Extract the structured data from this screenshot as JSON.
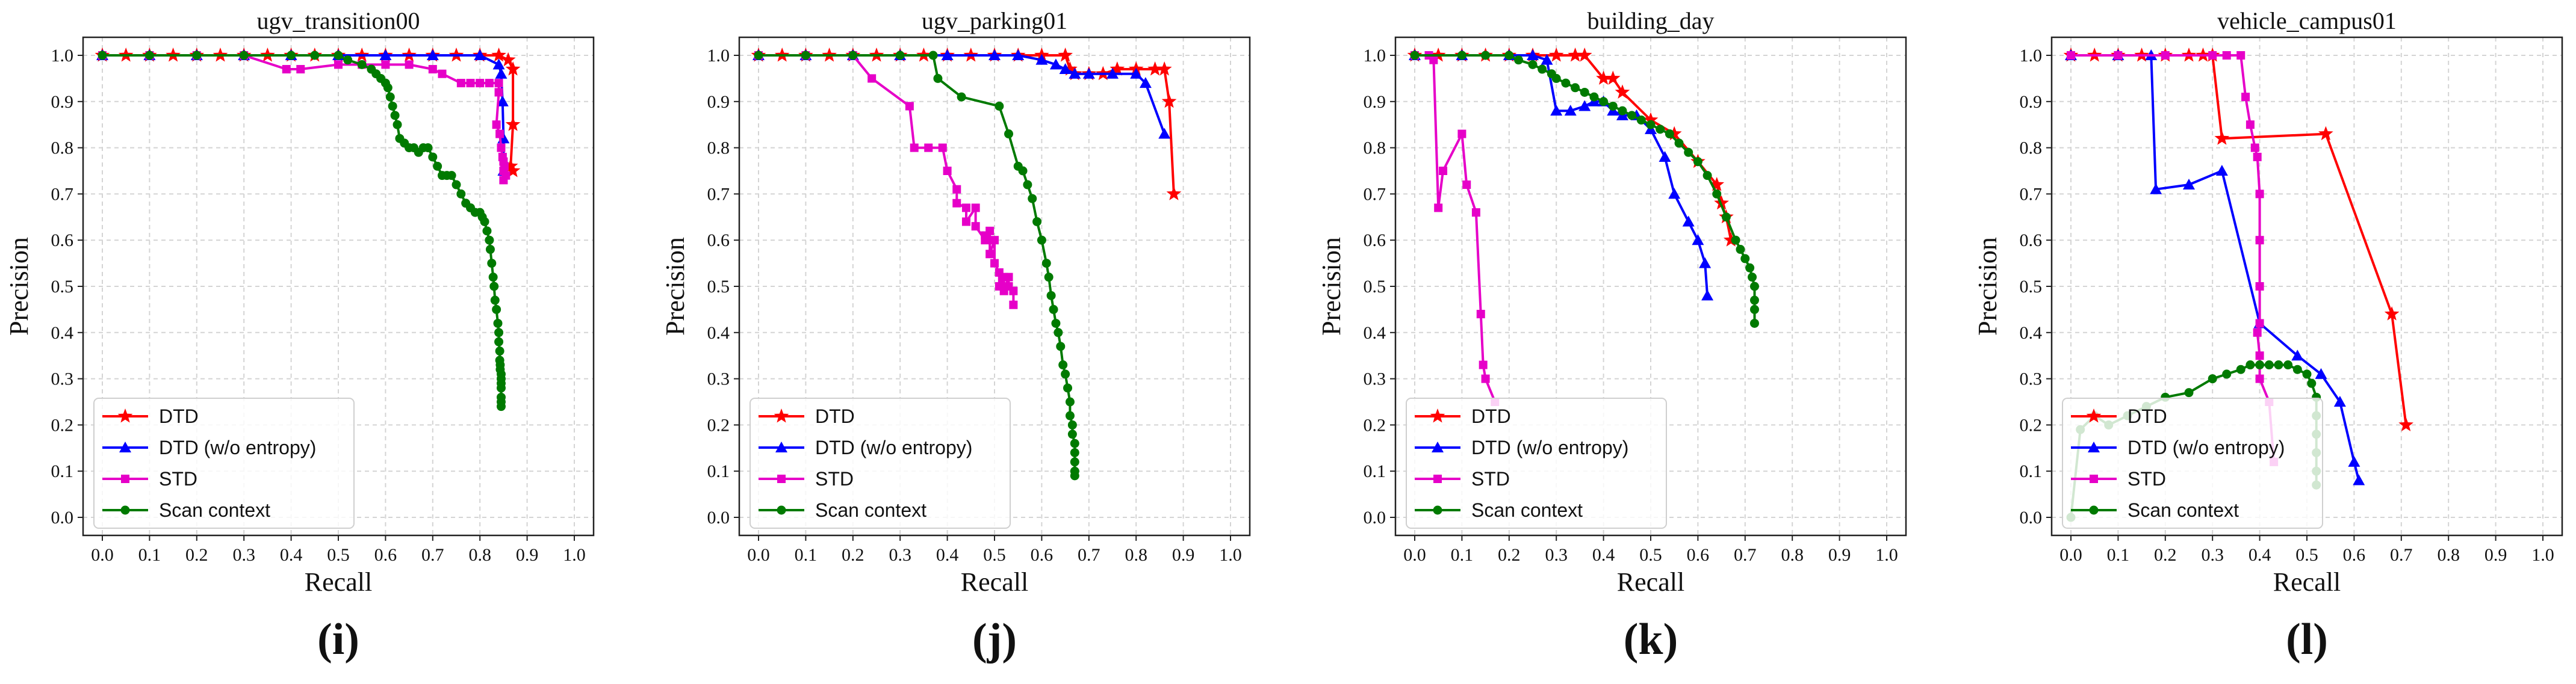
{
  "chart_data": [
    {
      "type": "line",
      "title": "ugv_transition00",
      "panel_label": "(i)",
      "xlabel": "Recall",
      "ylabel": "Precision",
      "xlim": [
        0,
        1
      ],
      "ylim": [
        0,
        1
      ],
      "xticks": [
        "0.0",
        "0.1",
        "0.2",
        "0.3",
        "0.4",
        "0.5",
        "0.6",
        "0.7",
        "0.8",
        "0.9",
        "1.0"
      ],
      "yticks": [
        "0.0",
        "0.1",
        "0.2",
        "0.3",
        "0.4",
        "0.5",
        "0.6",
        "0.7",
        "0.8",
        "0.9",
        "1.0"
      ],
      "grid": true,
      "legend_position": "lower-left",
      "series": [
        {
          "name": "DTD",
          "color": "#ff0000",
          "marker": "star",
          "x": [
            0.0,
            0.05,
            0.1,
            0.15,
            0.2,
            0.25,
            0.3,
            0.35,
            0.4,
            0.45,
            0.5,
            0.55,
            0.6,
            0.65,
            0.7,
            0.75,
            0.8,
            0.84,
            0.86,
            0.87,
            0.87,
            0.865,
            0.87
          ],
          "y": [
            1.0,
            1.0,
            1.0,
            1.0,
            1.0,
            1.0,
            1.0,
            1.0,
            1.0,
            1.0,
            1.0,
            1.0,
            1.0,
            1.0,
            1.0,
            1.0,
            1.0,
            1.0,
            0.99,
            0.97,
            0.85,
            0.76,
            0.75
          ]
        },
        {
          "name": "DTD (w/o entropy)",
          "color": "#0000ff",
          "marker": "triangle",
          "x": [
            0.0,
            0.1,
            0.2,
            0.3,
            0.4,
            0.5,
            0.6,
            0.7,
            0.8,
            0.84,
            0.845,
            0.848,
            0.85,
            0.85
          ],
          "y": [
            1.0,
            1.0,
            1.0,
            1.0,
            1.0,
            1.0,
            1.0,
            1.0,
            1.0,
            0.98,
            0.96,
            0.9,
            0.82,
            0.75
          ]
        },
        {
          "name": "STD",
          "color": "#e600c8",
          "marker": "square",
          "x": [
            0.0,
            0.1,
            0.2,
            0.3,
            0.39,
            0.42,
            0.5,
            0.55,
            0.6,
            0.65,
            0.7,
            0.72,
            0.76,
            0.78,
            0.8,
            0.82,
            0.84,
            0.84,
            0.835,
            0.842,
            0.845,
            0.848,
            0.85,
            0.852,
            0.85,
            0.855,
            0.85
          ],
          "y": [
            1.0,
            1.0,
            1.0,
            1.0,
            0.97,
            0.97,
            0.98,
            0.98,
            0.98,
            0.98,
            0.97,
            0.96,
            0.94,
            0.94,
            0.94,
            0.94,
            0.94,
            0.92,
            0.85,
            0.83,
            0.8,
            0.78,
            0.77,
            0.76,
            0.75,
            0.74,
            0.73
          ]
        },
        {
          "name": "Scan context",
          "color": "#007a00",
          "marker": "circle",
          "x": [
            0.0,
            0.1,
            0.2,
            0.3,
            0.4,
            0.45,
            0.5,
            0.52,
            0.55,
            0.57,
            0.58,
            0.59,
            0.6,
            0.605,
            0.61,
            0.615,
            0.62,
            0.625,
            0.63,
            0.64,
            0.65,
            0.66,
            0.67,
            0.68,
            0.69,
            0.7,
            0.71,
            0.72,
            0.73,
            0.74,
            0.75,
            0.76,
            0.77,
            0.78,
            0.79,
            0.8,
            0.805,
            0.81,
            0.815,
            0.82,
            0.822,
            0.825,
            0.828,
            0.83,
            0.832,
            0.835,
            0.838,
            0.84,
            0.84,
            0.842,
            0.842,
            0.843,
            0.843,
            0.845,
            0.845,
            0.845,
            0.845,
            0.845,
            0.845,
            0.845
          ],
          "y": [
            1.0,
            1.0,
            1.0,
            1.0,
            1.0,
            1.0,
            1.0,
            0.99,
            0.98,
            0.97,
            0.96,
            0.95,
            0.94,
            0.93,
            0.91,
            0.89,
            0.87,
            0.85,
            0.82,
            0.81,
            0.8,
            0.8,
            0.79,
            0.8,
            0.8,
            0.78,
            0.76,
            0.74,
            0.74,
            0.74,
            0.72,
            0.7,
            0.68,
            0.67,
            0.66,
            0.66,
            0.65,
            0.64,
            0.62,
            0.6,
            0.58,
            0.55,
            0.52,
            0.5,
            0.47,
            0.45,
            0.42,
            0.4,
            0.38,
            0.36,
            0.34,
            0.33,
            0.32,
            0.31,
            0.3,
            0.29,
            0.28,
            0.26,
            0.25,
            0.24
          ]
        }
      ]
    },
    {
      "type": "line",
      "title": "ugv_parking01",
      "panel_label": "(j)",
      "xlabel": "Recall",
      "ylabel": "Precision",
      "xlim": [
        0,
        1
      ],
      "ylim": [
        0,
        1
      ],
      "xticks": [
        "0.0",
        "0.1",
        "0.2",
        "0.3",
        "0.4",
        "0.5",
        "0.6",
        "0.7",
        "0.8",
        "0.9",
        "1.0"
      ],
      "yticks": [
        "0.0",
        "0.1",
        "0.2",
        "0.3",
        "0.4",
        "0.5",
        "0.6",
        "0.7",
        "0.8",
        "0.9",
        "1.0"
      ],
      "grid": true,
      "legend_position": "lower-left",
      "series": [
        {
          "name": "DTD",
          "color": "#ff0000",
          "marker": "star",
          "x": [
            0.0,
            0.05,
            0.1,
            0.15,
            0.2,
            0.25,
            0.3,
            0.35,
            0.4,
            0.45,
            0.5,
            0.55,
            0.6,
            0.65,
            0.66,
            0.67,
            0.7,
            0.73,
            0.76,
            0.8,
            0.84,
            0.86,
            0.87,
            0.88
          ],
          "y": [
            1.0,
            1.0,
            1.0,
            1.0,
            1.0,
            1.0,
            1.0,
            1.0,
            1.0,
            1.0,
            1.0,
            1.0,
            1.0,
            1.0,
            0.97,
            0.96,
            0.96,
            0.96,
            0.97,
            0.97,
            0.97,
            0.97,
            0.9,
            0.7
          ]
        },
        {
          "name": "DTD (w/o entropy)",
          "color": "#0000ff",
          "marker": "triangle",
          "x": [
            0.0,
            0.1,
            0.2,
            0.3,
            0.4,
            0.5,
            0.55,
            0.6,
            0.63,
            0.65,
            0.67,
            0.7,
            0.75,
            0.8,
            0.82,
            0.86
          ],
          "y": [
            1.0,
            1.0,
            1.0,
            1.0,
            1.0,
            1.0,
            1.0,
            0.99,
            0.98,
            0.97,
            0.96,
            0.96,
            0.96,
            0.96,
            0.94,
            0.83
          ]
        },
        {
          "name": "STD",
          "color": "#e600c8",
          "marker": "square",
          "x": [
            0.0,
            0.1,
            0.2,
            0.24,
            0.32,
            0.33,
            0.36,
            0.39,
            0.4,
            0.42,
            0.42,
            0.44,
            0.44,
            0.46,
            0.46,
            0.48,
            0.48,
            0.49,
            0.49,
            0.5,
            0.5,
            0.51,
            0.51,
            0.52,
            0.52,
            0.53,
            0.53,
            0.54,
            0.54
          ],
          "y": [
            1.0,
            1.0,
            1.0,
            0.95,
            0.89,
            0.8,
            0.8,
            0.8,
            0.75,
            0.71,
            0.68,
            0.67,
            0.64,
            0.67,
            0.63,
            0.6,
            0.61,
            0.62,
            0.57,
            0.6,
            0.55,
            0.53,
            0.5,
            0.52,
            0.49,
            0.52,
            0.5,
            0.49,
            0.46
          ]
        },
        {
          "name": "Scan context",
          "color": "#007a00",
          "marker": "circle",
          "x": [
            0.0,
            0.1,
            0.2,
            0.3,
            0.37,
            0.38,
            0.43,
            0.51,
            0.53,
            0.55,
            0.56,
            0.57,
            0.58,
            0.59,
            0.6,
            0.61,
            0.615,
            0.62,
            0.625,
            0.63,
            0.635,
            0.64,
            0.645,
            0.65,
            0.655,
            0.66,
            0.66,
            0.665,
            0.665,
            0.67,
            0.67,
            0.67,
            0.67,
            0.67
          ],
          "y": [
            1.0,
            1.0,
            1.0,
            1.0,
            1.0,
            0.95,
            0.91,
            0.89,
            0.83,
            0.76,
            0.75,
            0.72,
            0.69,
            0.64,
            0.6,
            0.55,
            0.52,
            0.48,
            0.45,
            0.42,
            0.4,
            0.37,
            0.33,
            0.31,
            0.28,
            0.25,
            0.22,
            0.2,
            0.18,
            0.16,
            0.14,
            0.12,
            0.1,
            0.09
          ]
        }
      ]
    },
    {
      "type": "line",
      "title": "building_day",
      "panel_label": "(k)",
      "xlabel": "Recall",
      "ylabel": "Precision",
      "xlim": [
        0,
        1
      ],
      "ylim": [
        0,
        1
      ],
      "xticks": [
        "0.0",
        "0.1",
        "0.2",
        "0.3",
        "0.4",
        "0.5",
        "0.6",
        "0.7",
        "0.8",
        "0.9",
        "1.0"
      ],
      "yticks": [
        "0.0",
        "0.1",
        "0.2",
        "0.3",
        "0.4",
        "0.5",
        "0.6",
        "0.7",
        "0.8",
        "0.9",
        "1.0"
      ],
      "grid": true,
      "legend_position": "lower-left",
      "series": [
        {
          "name": "DTD",
          "color": "#ff0000",
          "marker": "star",
          "x": [
            0.0,
            0.05,
            0.1,
            0.15,
            0.2,
            0.25,
            0.3,
            0.34,
            0.36,
            0.4,
            0.42,
            0.44,
            0.5,
            0.55,
            0.6,
            0.64,
            0.65,
            0.66,
            0.67
          ],
          "y": [
            1.0,
            1.0,
            1.0,
            1.0,
            1.0,
            1.0,
            1.0,
            1.0,
            1.0,
            0.95,
            0.95,
            0.92,
            0.86,
            0.83,
            0.77,
            0.72,
            0.68,
            0.65,
            0.6
          ]
        },
        {
          "name": "DTD (w/o entropy)",
          "color": "#0000ff",
          "marker": "triangle",
          "x": [
            0.0,
            0.1,
            0.2,
            0.25,
            0.28,
            0.3,
            0.33,
            0.36,
            0.38,
            0.4,
            0.42,
            0.44,
            0.47,
            0.5,
            0.53,
            0.55,
            0.58,
            0.6,
            0.615,
            0.62
          ],
          "y": [
            1.0,
            1.0,
            1.0,
            1.0,
            0.99,
            0.88,
            0.88,
            0.89,
            0.9,
            0.9,
            0.88,
            0.87,
            0.87,
            0.84,
            0.78,
            0.7,
            0.64,
            0.6,
            0.55,
            0.48
          ]
        },
        {
          "name": "STD",
          "color": "#e600c8",
          "marker": "square",
          "x": [
            0.0,
            0.03,
            0.04,
            0.05,
            0.06,
            0.1,
            0.11,
            0.13,
            0.14,
            0.145,
            0.15,
            0.17
          ],
          "y": [
            1.0,
            1.0,
            0.99,
            0.67,
            0.75,
            0.83,
            0.72,
            0.66,
            0.44,
            0.33,
            0.3,
            0.25
          ]
        },
        {
          "name": "Scan context",
          "color": "#007a00",
          "marker": "circle",
          "x": [
            0.0,
            0.1,
            0.15,
            0.2,
            0.22,
            0.25,
            0.27,
            0.29,
            0.3,
            0.32,
            0.34,
            0.36,
            0.38,
            0.4,
            0.42,
            0.44,
            0.46,
            0.48,
            0.5,
            0.52,
            0.54,
            0.56,
            0.58,
            0.6,
            0.62,
            0.64,
            0.66,
            0.68,
            0.69,
            0.7,
            0.71,
            0.715,
            0.72,
            0.72,
            0.72,
            0.72
          ],
          "y": [
            1.0,
            1.0,
            1.0,
            1.0,
            0.99,
            0.98,
            0.97,
            0.96,
            0.95,
            0.94,
            0.93,
            0.92,
            0.91,
            0.9,
            0.89,
            0.88,
            0.87,
            0.86,
            0.85,
            0.84,
            0.83,
            0.81,
            0.79,
            0.77,
            0.74,
            0.7,
            0.65,
            0.6,
            0.58,
            0.56,
            0.54,
            0.52,
            0.5,
            0.47,
            0.45,
            0.42
          ]
        }
      ]
    },
    {
      "type": "line",
      "title": "vehicle_campus01",
      "panel_label": "(l)",
      "xlabel": "Recall",
      "ylabel": "Precision",
      "xlim": [
        0,
        1
      ],
      "ylim": [
        0,
        1
      ],
      "xticks": [
        "0.0",
        "0.1",
        "0.2",
        "0.3",
        "0.4",
        "0.5",
        "0.6",
        "0.7",
        "0.8",
        "0.9",
        "1.0"
      ],
      "yticks": [
        "0.0",
        "0.1",
        "0.2",
        "0.3",
        "0.4",
        "0.5",
        "0.6",
        "0.7",
        "0.8",
        "0.9",
        "1.0"
      ],
      "grid": true,
      "legend_position": "lower-left",
      "series": [
        {
          "name": "DTD",
          "color": "#ff0000",
          "marker": "star",
          "x": [
            0.0,
            0.05,
            0.1,
            0.15,
            0.2,
            0.25,
            0.28,
            0.3,
            0.32,
            0.54,
            0.68,
            0.71
          ],
          "y": [
            1.0,
            1.0,
            1.0,
            1.0,
            1.0,
            1.0,
            1.0,
            1.0,
            0.82,
            0.83,
            0.44,
            0.2
          ]
        },
        {
          "name": "DTD (w/o entropy)",
          "color": "#0000ff",
          "marker": "triangle",
          "x": [
            0.0,
            0.1,
            0.17,
            0.18,
            0.25,
            0.32,
            0.4,
            0.48,
            0.53,
            0.57,
            0.6,
            0.61
          ],
          "y": [
            1.0,
            1.0,
            1.0,
            0.71,
            0.72,
            0.75,
            0.42,
            0.35,
            0.31,
            0.25,
            0.12,
            0.08
          ]
        },
        {
          "name": "STD",
          "color": "#e600c8",
          "marker": "square",
          "x": [
            0.0,
            0.1,
            0.2,
            0.3,
            0.33,
            0.36,
            0.37,
            0.38,
            0.39,
            0.395,
            0.4,
            0.4,
            0.4,
            0.4,
            0.395,
            0.4,
            0.4,
            0.42,
            0.43
          ],
          "y": [
            1.0,
            1.0,
            1.0,
            1.0,
            1.0,
            1.0,
            0.91,
            0.85,
            0.8,
            0.78,
            0.7,
            0.6,
            0.5,
            0.42,
            0.4,
            0.35,
            0.3,
            0.25,
            0.12
          ]
        },
        {
          "name": "Scan context",
          "color": "#007a00",
          "marker": "circle",
          "x": [
            0.0,
            0.02,
            0.05,
            0.08,
            0.12,
            0.16,
            0.2,
            0.25,
            0.3,
            0.33,
            0.36,
            0.38,
            0.4,
            0.42,
            0.44,
            0.46,
            0.48,
            0.5,
            0.51,
            0.52,
            0.52,
            0.52,
            0.52,
            0.52,
            0.52
          ],
          "y": [
            0.0,
            0.19,
            0.22,
            0.2,
            0.22,
            0.24,
            0.26,
            0.27,
            0.3,
            0.31,
            0.32,
            0.33,
            0.33,
            0.33,
            0.33,
            0.33,
            0.32,
            0.31,
            0.29,
            0.26,
            0.22,
            0.18,
            0.14,
            0.1,
            0.07
          ]
        }
      ]
    }
  ]
}
